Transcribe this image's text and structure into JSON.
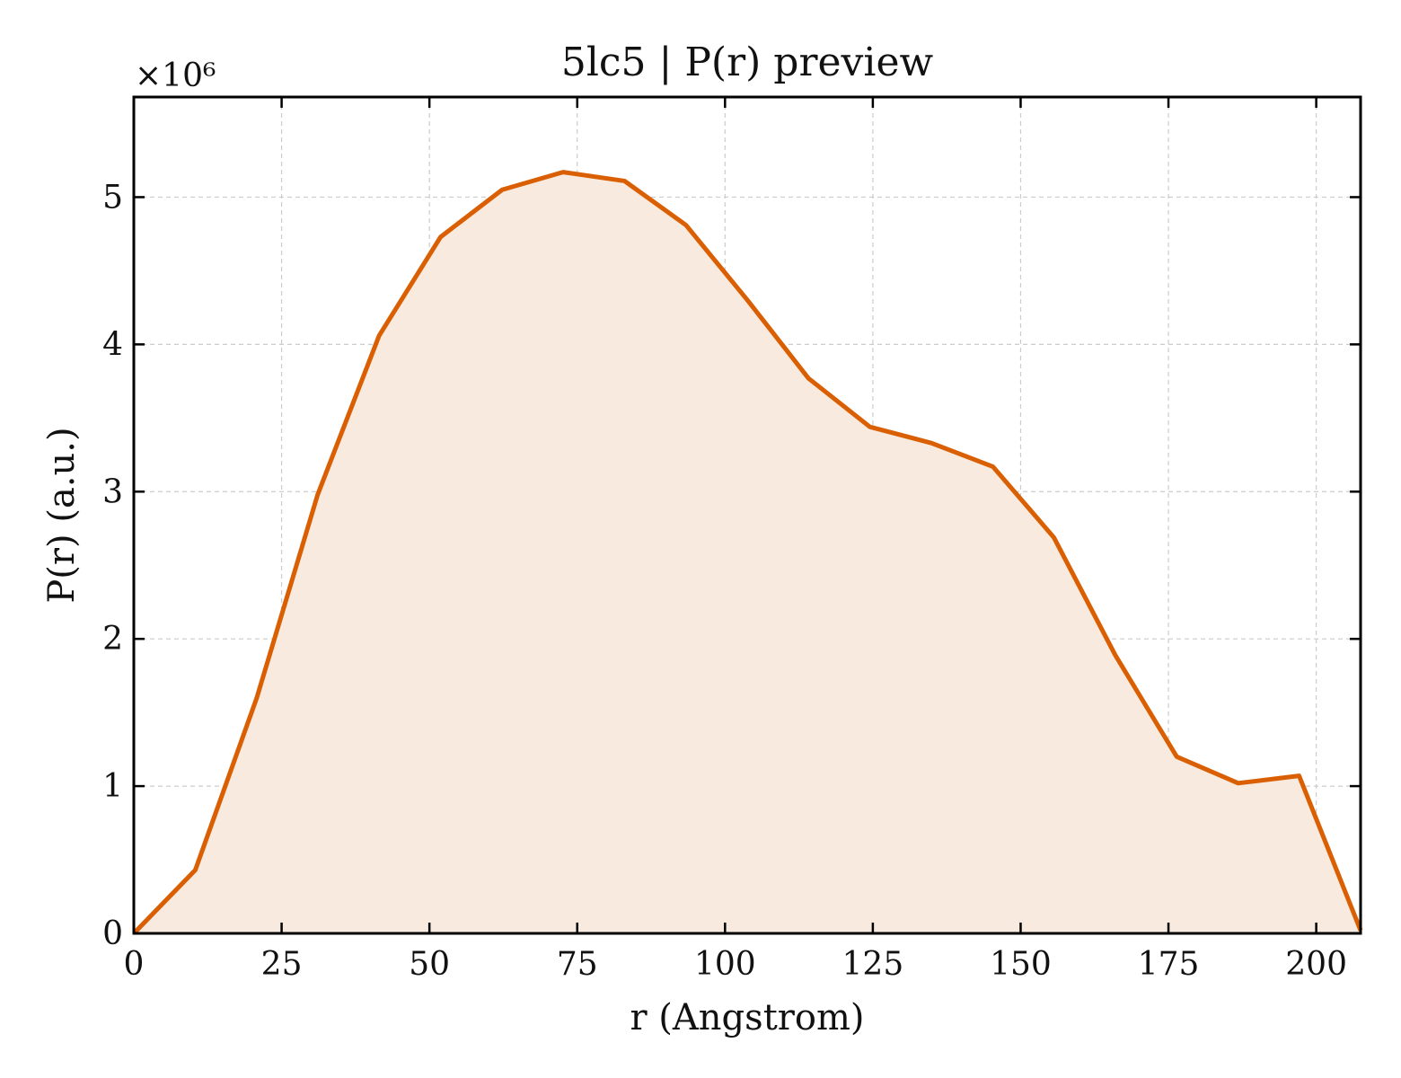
{
  "chart_data": {
    "type": "area",
    "title": "5lc5 | P(r) preview",
    "xlabel": "r (Angstrom)",
    "ylabel": "P(r) (a.u.)",
    "y_multiplier_label": "×10⁶",
    "xlim": [
      0,
      207.5
    ],
    "ylim": [
      0,
      5.68
    ],
    "x_ticks": [
      0,
      25,
      50,
      75,
      100,
      125,
      150,
      175,
      200
    ],
    "y_ticks": [
      0,
      1,
      2,
      3,
      4,
      5
    ],
    "grid": true,
    "legend": "none",
    "line_color": "#d95f02",
    "fill_color": "#f8eadf",
    "series": [
      {
        "x": [
          0,
          10.4,
          20.8,
          31.1,
          41.5,
          51.9,
          62.3,
          72.6,
          83.0,
          93.4,
          103.8,
          114.1,
          124.5,
          134.9,
          145.3,
          155.6,
          166.0,
          176.4,
          186.8,
          197.1,
          207.5
        ],
        "y": [
          0.0,
          0.43,
          1.6,
          2.98,
          4.06,
          4.73,
          5.05,
          5.17,
          5.11,
          4.81,
          4.3,
          3.77,
          3.44,
          3.33,
          3.17,
          2.69,
          1.89,
          1.2,
          1.02,
          1.07,
          0.02
        ]
      }
    ]
  }
}
